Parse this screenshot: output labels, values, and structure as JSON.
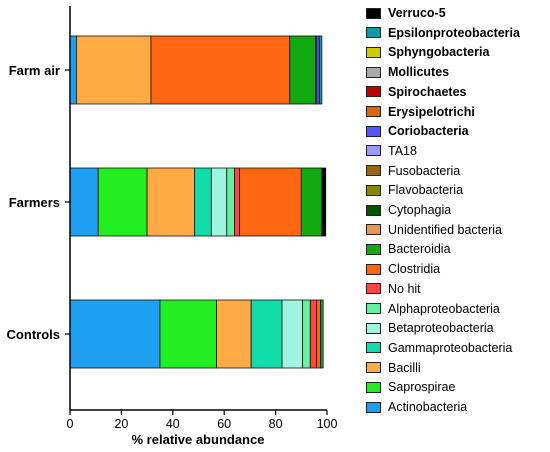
{
  "chart_data": {
    "type": "bar",
    "orientation": "horizontal",
    "stacked": true,
    "xlabel": "% relative abundance",
    "xlim": [
      0,
      100
    ],
    "xticks": [
      "0",
      "20",
      "40",
      "60",
      "80",
      "100"
    ],
    "categories": [
      "Farm air",
      "Farmers",
      "Controls"
    ],
    "legend_position": "right",
    "series": [
      {
        "name": "Actinobacteria",
        "color": "#1E9FF2",
        "bold": false,
        "values": [
          2.5,
          11,
          35
        ]
      },
      {
        "name": "Saprospirae",
        "color": "#22EE22",
        "bold": false,
        "values": [
          0,
          19,
          22
        ]
      },
      {
        "name": "Bacilli",
        "color": "#FFAA44",
        "bold": false,
        "values": [
          29,
          18.5,
          13.5
        ]
      },
      {
        "name": "Gammaproteobacteria",
        "color": "#11DDAA",
        "bold": false,
        "values": [
          0,
          6.5,
          12
        ]
      },
      {
        "name": "Betaproteobacteria",
        "color": "#A0F5E0",
        "bold": false,
        "values": [
          0,
          6,
          8
        ]
      },
      {
        "name": "Alphaproteobacteria",
        "color": "#66F0A0",
        "bold": false,
        "values": [
          0,
          3,
          3
        ]
      },
      {
        "name": "No hit",
        "color": "#FF4444",
        "bold": false,
        "values": [
          0,
          2,
          2.5
        ]
      },
      {
        "name": "Clostridia",
        "color": "#FF6611",
        "bold": false,
        "values": [
          54,
          24,
          1.5
        ]
      },
      {
        "name": "Bacteroidia",
        "color": "#11AA11",
        "bold": false,
        "values": [
          10,
          8,
          1
        ]
      },
      {
        "name": "Unidentified bacteria",
        "color": "#DD9955",
        "bold": false,
        "values": [
          0,
          0,
          0
        ]
      },
      {
        "name": "Cytophagia",
        "color": "#005500",
        "bold": false,
        "values": [
          0,
          0,
          0
        ]
      },
      {
        "name": "Flavobacteria",
        "color": "#888800",
        "bold": false,
        "values": [
          0,
          0,
          0
        ]
      },
      {
        "name": "Fusobacteria",
        "color": "#996611",
        "bold": false,
        "values": [
          0,
          0,
          0
        ]
      },
      {
        "name": "TA18",
        "color": "#9999FF",
        "bold": false,
        "values": [
          0.5,
          0,
          0
        ]
      },
      {
        "name": "Coriobacteria",
        "color": "#5555FF",
        "bold": true,
        "values": [
          1,
          0,
          0
        ]
      },
      {
        "name": "Erysipelotrichi",
        "color": "#DD6611",
        "bold": true,
        "values": [
          0,
          0,
          0
        ]
      },
      {
        "name": "Spirochaetes",
        "color": "#BB0000",
        "bold": true,
        "values": [
          0,
          0,
          0
        ]
      },
      {
        "name": "Mollicutes",
        "color": "#AAAAAA",
        "bold": true,
        "values": [
          0,
          0,
          0
        ]
      },
      {
        "name": "Sphyngobacteria",
        "color": "#CCCC00",
        "bold": true,
        "values": [
          0,
          0,
          0
        ]
      },
      {
        "name": "Epsilonproteobacteria",
        "color": "#1199AA",
        "bold": true,
        "values": [
          1,
          0,
          0
        ]
      },
      {
        "name": "Verruco-5",
        "color": "#000000",
        "bold": true,
        "values": [
          0,
          1.5,
          0
        ]
      }
    ]
  }
}
